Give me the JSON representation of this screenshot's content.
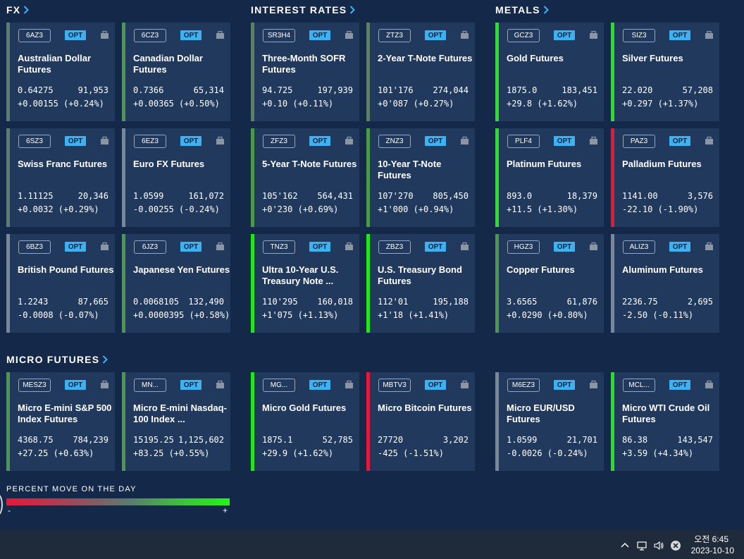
{
  "sections": {
    "fx": "FX",
    "rates": "INTEREST RATES",
    "metals": "METALS",
    "micro": "MICRO FUTURES"
  },
  "colors": {
    "background": "#14294a",
    "card": "#21395c",
    "accent": "#3db2f2",
    "up_strong": "#22e617",
    "up_weak": "#4a9a4a",
    "down_strong": "#e8173a",
    "neutral": "#7a8796"
  },
  "cards": [
    {
      "code": "6AZ3",
      "name": "Australian Dollar Futures",
      "price": "0.64275",
      "volume": "91,953",
      "change": "+0.00155 (+0.24%)",
      "move_pct": 0.24
    },
    {
      "code": "6CZ3",
      "name": "Canadian Dollar Futures",
      "price": "0.7366",
      "volume": "65,314",
      "change": "+0.00365 (+0.50%)",
      "move_pct": 0.5
    },
    {
      "code": "SR3H4",
      "name": "Three-Month SOFR Futures",
      "price": "94.725",
      "volume": "197,939",
      "change": "+0.10 (+0.11%)",
      "move_pct": 0.11
    },
    {
      "code": "ZTZ3",
      "name": "2-Year T-Note Futures",
      "price": "101'176",
      "volume": "274,044",
      "change": "+0'087 (+0.27%)",
      "move_pct": 0.27
    },
    {
      "code": "GCZ3",
      "name": "Gold Futures",
      "price": "1875.0",
      "volume": "183,451",
      "change": "+29.8 (+1.62%)",
      "move_pct": 1.62
    },
    {
      "code": "SIZ3",
      "name": "Silver Futures",
      "price": "22.020",
      "volume": "57,208",
      "change": "+0.297 (+1.37%)",
      "move_pct": 1.37
    },
    {
      "code": "6SZ3",
      "name": "Swiss Franc Futures",
      "price": "1.11125",
      "volume": "20,346",
      "change": "+0.0032 (+0.29%)",
      "move_pct": 0.29
    },
    {
      "code": "6EZ3",
      "name": "Euro FX Futures",
      "price": "1.0599",
      "volume": "161,072",
      "change": "-0.00255 (-0.24%)",
      "move_pct": -0.24
    },
    {
      "code": "ZFZ3",
      "name": "5-Year T-Note Futures",
      "price": "105'162",
      "volume": "564,431",
      "change": "+0'230 (+0.69%)",
      "move_pct": 0.69
    },
    {
      "code": "ZNZ3",
      "name": "10-Year T-Note Futures",
      "price": "107'270",
      "volume": "805,450",
      "change": "+1'000 (+0.94%)",
      "move_pct": 0.94
    },
    {
      "code": "PLF4",
      "name": "Platinum Futures",
      "price": "893.0",
      "volume": "18,379",
      "change": "+11.5 (+1.30%)",
      "move_pct": 1.3
    },
    {
      "code": "PAZ3",
      "name": "Palladium Futures",
      "price": "1141.00",
      "volume": "3,576",
      "change": "-22.10 (-1.90%)",
      "move_pct": -1.9
    },
    {
      "code": "6BZ3",
      "name": "British Pound Futures",
      "price": "1.2243",
      "volume": "87,665",
      "change": "-0.0008 (-0.07%)",
      "move_pct": -0.07
    },
    {
      "code": "6JZ3",
      "name": "Japanese Yen Futures",
      "price": "0.0068105",
      "volume": "132,490",
      "change": "+0.0000395 (+0.58%)",
      "move_pct": 0.58
    },
    {
      "code": "TNZ3",
      "name": "Ultra 10-Year U.S. Treasury Note ...",
      "price": "110'295",
      "volume": "160,018",
      "change": "+1'075 (+1.13%)",
      "move_pct": 1.13
    },
    {
      "code": "ZBZ3",
      "name": "U.S. Treasury Bond Futures",
      "price": "112'01",
      "volume": "195,188",
      "change": "+1'18 (+1.41%)",
      "move_pct": 1.41
    },
    {
      "code": "HGZ3",
      "name": "Copper Futures",
      "price": "3.6565",
      "volume": "61,876",
      "change": "+0.0290 (+0.80%)",
      "move_pct": 0.8
    },
    {
      "code": "ALIZ3",
      "name": "Aluminum Futures",
      "price": "2236.75",
      "volume": "2,695",
      "change": "-2.50 (-0.11%)",
      "move_pct": -0.11
    },
    {
      "code": "MESZ3",
      "name": "Micro E-mini S&P 500 Index Futures",
      "price": "4368.75",
      "volume": "784,239",
      "change": "+27.25 (+0.63%)",
      "move_pct": 0.63
    },
    {
      "code": "MN...",
      "name": "Micro E-mini Nasdaq-100 Index ...",
      "price": "15195.25",
      "volume": "1,125,602",
      "change": "+83.25 (+0.55%)",
      "move_pct": 0.55
    },
    {
      "code": "MG...",
      "name": "Micro Gold Futures",
      "price": "1875.1",
      "volume": "52,785",
      "change": "+29.9 (+1.62%)",
      "move_pct": 1.62
    },
    {
      "code": "MBTV3",
      "name": "Micro Bitcoin Futures",
      "price": "27720",
      "volume": "3,202",
      "change": "-425 (-1.51%)",
      "move_pct": -1.51
    },
    {
      "code": "M6EZ3",
      "name": "Micro EUR/USD Futures",
      "price": "1.0599",
      "volume": "21,701",
      "change": "-0.0026 (-0.24%)",
      "move_pct": -0.24
    },
    {
      "code": "MCL...",
      "name": "Micro WTI Crude Oil Futures",
      "price": "86.38",
      "volume": "143,547",
      "change": "+3.59 (+4.34%)",
      "move_pct": 4.34
    }
  ],
  "opt_label": "OPT",
  "legend": {
    "title": "PERCENT MOVE ON THE DAY",
    "minus": "-",
    "plus": "+"
  },
  "taskbar": {
    "time": "오전 6:45",
    "date": "2023-10-10"
  }
}
